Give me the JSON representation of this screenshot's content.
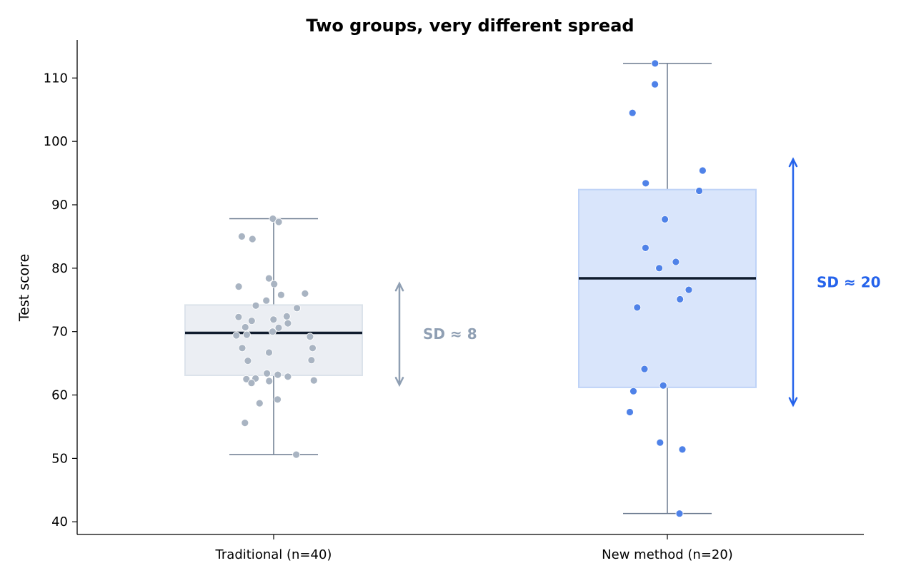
{
  "chart_data": {
    "type": "box",
    "title": "Two groups, very different spread",
    "xlabel": "",
    "ylabel": "Test score",
    "ylim": [
      38,
      116
    ],
    "yticks": [
      40,
      50,
      60,
      70,
      80,
      90,
      100,
      110
    ],
    "grid": false,
    "categories": [
      "Traditional (n=40)",
      "New method (n=20)"
    ],
    "groups": [
      {
        "category": "Traditional (n=40)",
        "box_fill": "#e9edf2",
        "box_edge": "#dce3eb",
        "point_color": "#a9b4c2",
        "whisker_color": "#6b7a8f",
        "median_color": "#0f1b2d",
        "stats": {
          "whisker_low": 50.6,
          "q1": 63.1,
          "median": 69.8,
          "q3": 74.2,
          "whisker_high": 87.8
        },
        "points": [
          87.8,
          87.3,
          85.0,
          84.6,
          78.4,
          77.5,
          77.1,
          76.0,
          75.8,
          74.9,
          74.1,
          73.7,
          72.4,
          72.3,
          71.9,
          71.7,
          71.3,
          70.7,
          70.6,
          70.0,
          69.5,
          69.4,
          69.2,
          67.4,
          67.4,
          66.7,
          65.5,
          65.4,
          63.4,
          63.2,
          62.9,
          62.6,
          62.5,
          62.3,
          62.2,
          61.9,
          59.3,
          58.7,
          55.6,
          50.6
        ],
        "sd_annotation": {
          "label": "SD ≈ 8",
          "from": 61.6,
          "to": 77.6,
          "color": "#8f9fb3"
        }
      },
      {
        "category": "New method (n=20)",
        "box_fill": "#d6e3fb",
        "box_edge": "#bfd3f7",
        "point_color": "#4f82e8",
        "whisker_color": "#6b7a8f",
        "median_color": "#0f1b2d",
        "stats": {
          "whisker_low": 41.3,
          "q1": 61.2,
          "median": 78.4,
          "q3": 92.4,
          "whisker_high": 112.3
        },
        "points": [
          112.3,
          109.0,
          104.5,
          95.4,
          93.4,
          92.2,
          87.7,
          83.2,
          81.0,
          80.0,
          76.6,
          75.1,
          73.8,
          64.1,
          61.5,
          60.6,
          57.3,
          52.5,
          51.4,
          41.3
        ],
        "sd_annotation": {
          "label": "SD ≈ 20",
          "from": 58.4,
          "to": 97.2,
          "color": "#2563eb"
        }
      }
    ]
  }
}
